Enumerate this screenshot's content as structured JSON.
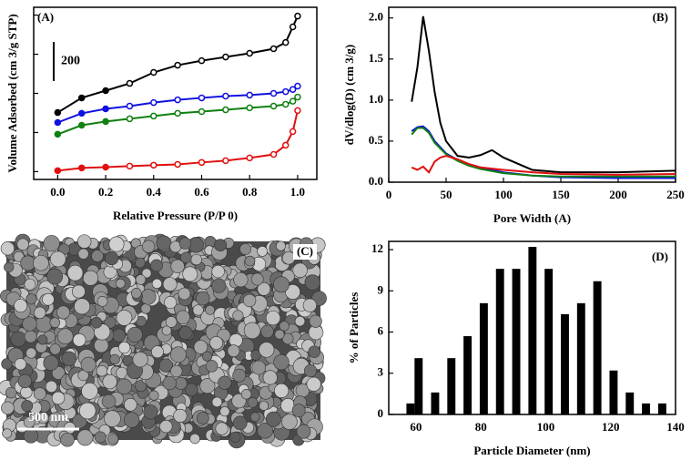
{
  "chart_data": [
    {
      "type": "line",
      "label": "(A)",
      "xlabel": "Relative Pressure (P/P 0)",
      "ylabel": "Volume Adsorbed (cm 3/g STP)",
      "xlim": [
        -0.1,
        1.08
      ],
      "ylim": [
        -40,
        840
      ],
      "xticks": [
        {
          "value": 0,
          "label": "0.0"
        },
        {
          "value": 0.2,
          "label": "0.2"
        },
        {
          "value": 0.4,
          "label": "0.4"
        },
        {
          "value": 0.6,
          "label": "0.6"
        },
        {
          "value": 0.8,
          "label": "0.8"
        },
        {
          "value": 1,
          "label": "1.0"
        }
      ],
      "yticks": [
        0,
        200,
        400,
        600,
        800
      ],
      "ytick_labels": false,
      "scale_bar": 200,
      "markers": true,
      "series": [
        {
          "color": "#000000",
          "x": [
            0,
            0.1,
            0.2,
            0.3,
            0.4,
            0.5,
            0.6,
            0.7,
            0.8,
            0.9,
            0.95,
            0.98,
            1.0
          ],
          "values": [
            302,
            377,
            414,
            451,
            507,
            544,
            567,
            586,
            605,
            628,
            660,
            740,
            795
          ]
        },
        {
          "color": "#1010e0",
          "x": [
            0,
            0.1,
            0.2,
            0.3,
            0.4,
            0.5,
            0.6,
            0.7,
            0.8,
            0.9,
            0.95,
            0.98,
            1.0
          ],
          "values": [
            251,
            298,
            321,
            335,
            353,
            367,
            377,
            386,
            391,
            400,
            409,
            420,
            437
          ]
        },
        {
          "color": "#108010",
          "x": [
            0,
            0.1,
            0.2,
            0.3,
            0.4,
            0.5,
            0.6,
            0.7,
            0.8,
            0.9,
            0.95,
            0.98,
            1.0
          ],
          "values": [
            191,
            237,
            256,
            270,
            284,
            298,
            307,
            316,
            326,
            335,
            344,
            360,
            381
          ]
        },
        {
          "color": "#e01010",
          "x": [
            0,
            0.1,
            0.2,
            0.3,
            0.4,
            0.5,
            0.6,
            0.7,
            0.8,
            0.9,
            0.95,
            0.98,
            1.0
          ],
          "values": [
            5,
            19,
            23,
            28,
            33,
            37,
            47,
            56,
            70,
            88,
            135,
            205,
            312
          ]
        }
      ]
    },
    {
      "type": "line",
      "label": "(B)",
      "xlabel": "Pore Width (A)",
      "ylabel": "dV/dlog(D) (cm 3/g)",
      "xlim": [
        0,
        250
      ],
      "ylim": [
        0,
        2.13
      ],
      "xticks": [
        0,
        50,
        100,
        150,
        200,
        250
      ],
      "yticks": [
        {
          "value": 0,
          "label": "0.0"
        },
        {
          "value": 0.5,
          "label": "0.5"
        },
        {
          "value": 1,
          "label": "1.0"
        },
        {
          "value": 1.5,
          "label": "1.5"
        },
        {
          "value": 2,
          "label": "2.0"
        }
      ],
      "series": [
        {
          "color": "#000000",
          "x": [
            20,
            25,
            30,
            35,
            40,
            45,
            50,
            60,
            70,
            80,
            90,
            100,
            125,
            150,
            200,
            250
          ],
          "values": [
            0.98,
            1.4,
            2.02,
            1.6,
            1.1,
            0.72,
            0.5,
            0.32,
            0.3,
            0.33,
            0.39,
            0.3,
            0.15,
            0.12,
            0.12,
            0.14
          ]
        },
        {
          "color": "#1010e0",
          "x": [
            20,
            25,
            30,
            35,
            40,
            50,
            60,
            70,
            80,
            100,
            125,
            150,
            200,
            250
          ],
          "values": [
            0.62,
            0.67,
            0.68,
            0.62,
            0.5,
            0.35,
            0.27,
            0.22,
            0.18,
            0.12,
            0.08,
            0.06,
            0.05,
            0.05
          ]
        },
        {
          "color": "#108010",
          "x": [
            20,
            25,
            30,
            35,
            40,
            50,
            60,
            70,
            80,
            100,
            125,
            150,
            200,
            250
          ],
          "values": [
            0.58,
            0.66,
            0.66,
            0.6,
            0.48,
            0.34,
            0.26,
            0.2,
            0.16,
            0.11,
            0.08,
            0.07,
            0.07,
            0.07
          ]
        },
        {
          "color": "#e01010",
          "x": [
            20,
            25,
            30,
            35,
            40,
            45,
            50,
            60,
            70,
            80,
            100,
            125,
            150,
            200,
            250
          ],
          "values": [
            0.18,
            0.15,
            0.19,
            0.12,
            0.25,
            0.3,
            0.32,
            0.28,
            0.22,
            0.18,
            0.15,
            0.12,
            0.1,
            0.09,
            0.1
          ]
        }
      ]
    },
    {
      "type": "image",
      "label": "(C)",
      "scale_bar_label": "500 nm"
    },
    {
      "type": "bar",
      "label": "(D)",
      "xlabel": "Particle Diameter (nm)",
      "ylabel": "% of Particles",
      "xlim": [
        51.6,
        140
      ],
      "ylim": [
        0,
        12.6
      ],
      "xticks": [
        60,
        80,
        100,
        120,
        140
      ],
      "yticks": [
        0,
        3,
        6,
        9,
        12
      ],
      "color": "#000000",
      "x": [
        58.3,
        60.8,
        65.9,
        70.9,
        75.9,
        80.9,
        85.9,
        90.9,
        95.9,
        100.9,
        105.9,
        110.9,
        115.9,
        120.9,
        125.9,
        130.9,
        135.9
      ],
      "values": [
        0.8,
        4.1,
        1.6,
        4.1,
        5.7,
        8.1,
        10.6,
        10.6,
        12.2,
        10.6,
        7.3,
        8.1,
        9.7,
        3.2,
        1.6,
        0.8,
        0.8
      ]
    }
  ]
}
